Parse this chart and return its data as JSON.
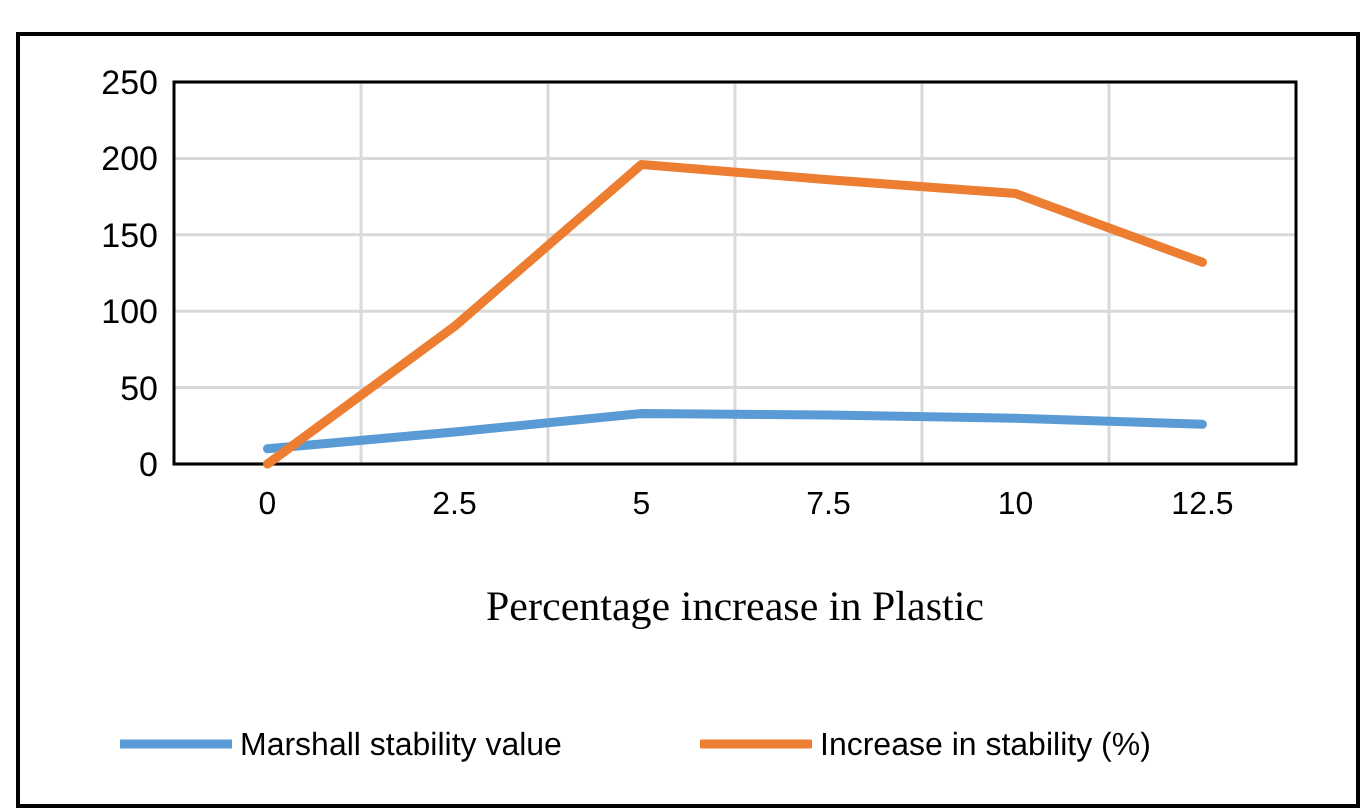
{
  "chart_data": {
    "type": "line",
    "xlabel": "Percentage increase in Plastic",
    "categories": [
      "0",
      "2.5",
      "5",
      "7.5",
      "10",
      "12.5"
    ],
    "series": [
      {
        "name": "Marshall stability value",
        "color": "#5b9bd5",
        "values": [
          10,
          21,
          33,
          32,
          30,
          26
        ]
      },
      {
        "name": "Increase in stability (%)",
        "color": "#ed7d31",
        "values": [
          0,
          90,
          196,
          186,
          177,
          132
        ]
      }
    ],
    "ylim": [
      0,
      250
    ],
    "yticks": [
      0,
      50,
      100,
      150,
      200,
      250
    ],
    "grid": true,
    "legend": "bottom",
    "marker": "none",
    "line_style": "solid"
  }
}
